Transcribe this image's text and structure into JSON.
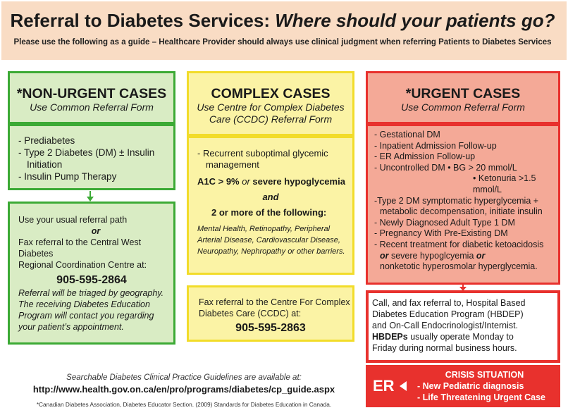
{
  "header": {
    "title_main": "Referral to Diabetes Services: ",
    "title_italic": "Where should your patients go?",
    "subtitle": "Please use the following as a guide – Healthcare Provider should always use clinical judgment when referring Patients to Diabetes Services"
  },
  "non_urgent": {
    "title": "*NON-URGENT CASES",
    "subtitle": "Use Common Referral Form",
    "items": [
      "- Prediabetes",
      "- Type 2 Diabetes (DM) ± Insulin",
      "  Initiation",
      "- Insulin Pump Therapy"
    ],
    "referral": {
      "line1": "Use your usual referral path",
      "or": "or",
      "line2": "Fax referral to the Central West Diabetes",
      "line3": "Regional Coordination Centre at:",
      "phone": "905-595-2864",
      "note1": "Referral will be triaged by geography.",
      "note2": "The receiving Diabetes Education",
      "note3": "Program will contact you regarding",
      "note4": "your patient’s appointment."
    }
  },
  "complex": {
    "title": "COMPLEX CASES",
    "subtitle1": "Use Centre for Complex Diabetes",
    "subtitle2": "Care (CCDC) Referral Form",
    "item1a": "- Recurrent suboptimal glycemic",
    "item1b": "  management",
    "a1c_bold": "A1C > 9% ",
    "a1c_or": "or",
    "a1c_rest": " severe hypoglycemia",
    "and": "and",
    "more": "2 or more of the following:",
    "conditions": [
      "Mental Health, Retinopathy, Peripheral",
      "Arterial Disease, Cardiovascular Disease,",
      "Neuropathy, Nephropathy or other barriers."
    ],
    "referral": {
      "line1": "Fax referral to the Centre For Complex",
      "line2": "Diabetes Care (CCDC) at:",
      "phone": "905-595-2863"
    }
  },
  "urgent": {
    "title": "*URGENT CASES",
    "subtitle": "Use Common Referral Form",
    "items": [
      "- Gestational DM",
      "- Inpatient Admission Follow-up",
      "- ER Admission Follow-up",
      "- Uncontrolled DM • BG > 20 mmol/L",
      "• Ketonuria >1.5 mmol/L",
      "-Type 2 DM symptomatic hyperglycemia +",
      "  metabolic decompensation, initiate insulin",
      "- Newly Diagnosed Adult Type 1 DM",
      "- Pregnancy With Pre-Existing DM",
      "- Recent treatment for diabetic ketoacidosis"
    ],
    "or_word": "or",
    "item_severe": " severe hypoglcyemia ",
    "item_last": "nonketotic hyperosmolar hyperglycemia.",
    "referral": {
      "line1": "Call, and fax referral to, Hospital Based",
      "line2": "Diabetes Education Program (HBDEP)",
      "line3": "and On-Call Endocrinologist/Internist.",
      "hbdeps": "HBDEPs",
      "line4_rest": " usually operate Monday to",
      "line5": "Friday during normal business hours."
    }
  },
  "crisis": {
    "er": "ER",
    "title": "CRISIS SITUATION",
    "item1": "- New Pediatric diagnosis",
    "item2": "- Life Threatening Urgent Case"
  },
  "footer": {
    "guidelines": "Searchable Diabetes Clinical Practice Guidelines are available at:",
    "url": "http://www.health.gov.on.ca/en/pro/programs/diabetes/cp_guide.aspx",
    "citation": "*Canadian Diabetes Association, Diabetes Educator Section. (2009) Standards for Diabetes Education in Canada."
  },
  "colors": {
    "green": "#3caa35",
    "yellow": "#f2dc2a",
    "red": "#e8312d",
    "header_bg": "#f9dcc4"
  }
}
